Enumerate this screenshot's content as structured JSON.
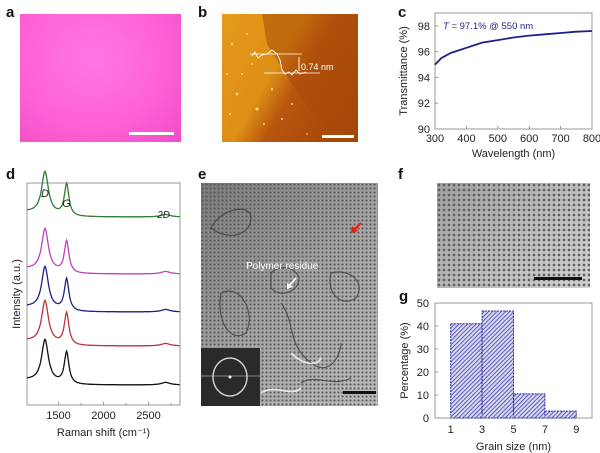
{
  "panels": {
    "a": {
      "label": "a",
      "description": "Optical micrograph of graphene film on substrate",
      "color": "#ff5fd0"
    },
    "b": {
      "label": "b",
      "description": "AFM image with step height profile",
      "annotation": "0.74 nm"
    },
    "c": {
      "label": "c"
    },
    "d": {
      "label": "d"
    },
    "e": {
      "label": "e",
      "annotation": "Polymer residue"
    },
    "f": {
      "label": "f"
    },
    "g": {
      "label": "g"
    }
  },
  "chart_data": [
    {
      "id": "c",
      "type": "line",
      "title": "",
      "annotation": "T = 97.1% @ 550 nm",
      "annotation_italic_part": "T",
      "annotation_rest": " = 97.1% @ 550 nm",
      "xlabel": "Wavelength (nm)",
      "ylabel": "Transmittance (%)",
      "xlim": [
        300,
        800
      ],
      "ylim": [
        90,
        99
      ],
      "xticks": [
        300,
        400,
        500,
        600,
        700,
        800
      ],
      "yticks": [
        90,
        92,
        94,
        96,
        98
      ],
      "series": [
        {
          "name": "Transmittance",
          "color": "#1f1f8a",
          "x": [
            300,
            320,
            350,
            400,
            450,
            500,
            550,
            600,
            650,
            700,
            750,
            800
          ],
          "y": [
            95.0,
            95.5,
            95.9,
            96.3,
            96.7,
            96.9,
            97.1,
            97.25,
            97.35,
            97.45,
            97.55,
            97.6
          ]
        }
      ]
    },
    {
      "id": "d",
      "type": "line",
      "title": "",
      "xlabel": "Raman shift (cm⁻¹)",
      "ylabel": "Intensity (a.u.)",
      "xlim": [
        1150,
        2850
      ],
      "xticks": [
        1500,
        2000,
        2500
      ],
      "peak_labels": [
        "D",
        "G",
        "2D"
      ],
      "peak_positions": [
        1350,
        1590,
        2690
      ],
      "series": [
        {
          "name": "spectrum 1",
          "color": "#2e7d32"
        },
        {
          "name": "spectrum 2",
          "color": "#c040c0"
        },
        {
          "name": "spectrum 3",
          "color": "#1f1f8a"
        },
        {
          "name": "spectrum 4",
          "color": "#c0303a"
        },
        {
          "name": "spectrum 5",
          "color": "#111111"
        }
      ]
    },
    {
      "id": "g",
      "type": "bar",
      "title": "",
      "xlabel": "Grain size (nm)",
      "ylabel": "Percentage (%)",
      "bin_edges": [
        1,
        3,
        5,
        7,
        9
      ],
      "categories": [
        "1-3",
        "3-5",
        "5-7",
        "7-9"
      ],
      "values": [
        41,
        46.5,
        10.5,
        3
      ],
      "xticks": [
        1,
        3,
        5,
        7,
        9
      ],
      "yticks": [
        0,
        10,
        20,
        30,
        40,
        50
      ],
      "ylim": [
        0,
        50
      ],
      "color": "#2a2aa0"
    }
  ]
}
